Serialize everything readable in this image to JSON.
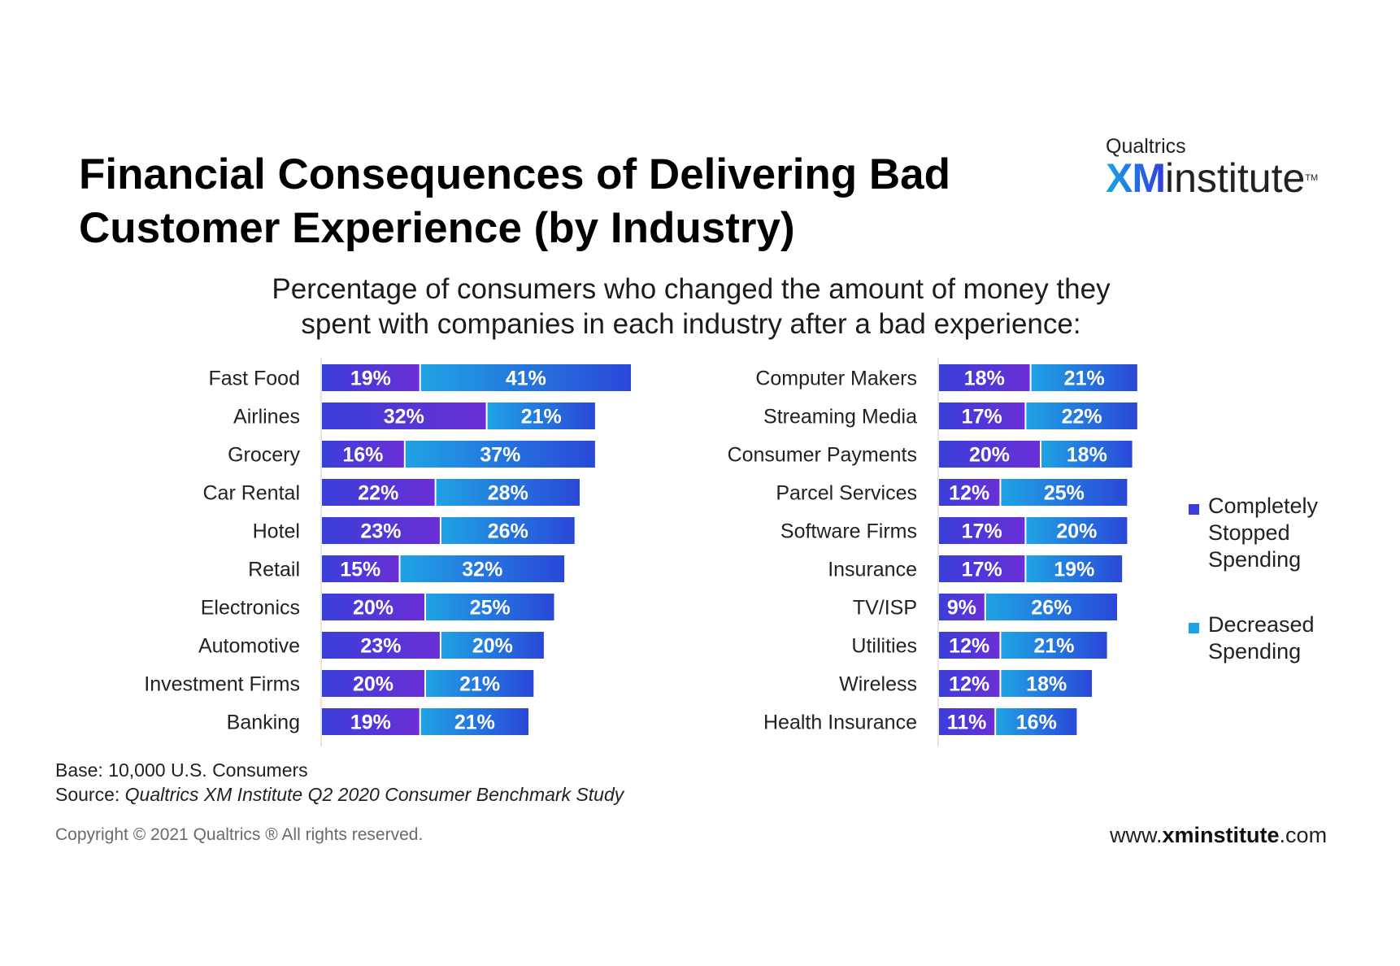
{
  "title_lines": [
    "Financial Consequences of Delivering Bad",
    "Customer Experience (by Industry)"
  ],
  "logo": {
    "top": "Qualtrics",
    "xm": "XM",
    "institute": "institute",
    "tm": "TM"
  },
  "subtitle_lines": [
    "Percentage of consumers who changed the amount of money they",
    "spent with companies in each industry after a bad experience:"
  ],
  "colors": {
    "stopped": "#3a3fd9",
    "stopped_alt": "#6a2fd6",
    "decreased": "#1fa3e4",
    "decreased_alt": "#2a48d8"
  },
  "legend": {
    "stopped": "Completely Stopped Spending",
    "decreased": "Decreased Spending"
  },
  "chart_data": [
    {
      "type": "bar",
      "orientation": "horizontal",
      "stacked": true,
      "categories": [
        "Fast Food",
        "Airlines",
        "Grocery",
        "Car Rental",
        "Hotel",
        "Retail",
        "Electronics",
        "Automotive",
        "Investment Firms",
        "Banking"
      ],
      "series": [
        {
          "name": "Completely Stopped Spending",
          "values": [
            19,
            32,
            16,
            22,
            23,
            15,
            20,
            23,
            20,
            19
          ]
        },
        {
          "name": "Decreased Spending",
          "values": [
            41,
            21,
            37,
            28,
            26,
            32,
            25,
            20,
            21,
            21
          ]
        }
      ],
      "value_suffix": "%"
    },
    {
      "type": "bar",
      "orientation": "horizontal",
      "stacked": true,
      "categories": [
        "Computer Makers",
        "Streaming Media",
        "Consumer Payments",
        "Parcel Services",
        "Software Firms",
        "Insurance",
        "TV/ISP",
        "Utilities",
        "Wireless",
        "Health Insurance"
      ],
      "series": [
        {
          "name": "Completely Stopped Spending",
          "values": [
            18,
            17,
            20,
            12,
            17,
            17,
            9,
            12,
            12,
            11
          ]
        },
        {
          "name": "Decreased Spending",
          "values": [
            21,
            22,
            18,
            25,
            20,
            19,
            26,
            21,
            18,
            16
          ]
        }
      ],
      "value_suffix": "%"
    }
  ],
  "footer": {
    "base": "Base: 10,000 U.S. Consumers",
    "source_label": "Source: ",
    "source_text": "Qualtrics XM Institute Q2 2020 Consumer Benchmark Study",
    "copyright": "Copyright © 2021 Qualtrics ® All rights reserved.",
    "url_prefix": "www.",
    "url_bold": "xminstitute",
    "url_suffix": ".com"
  }
}
